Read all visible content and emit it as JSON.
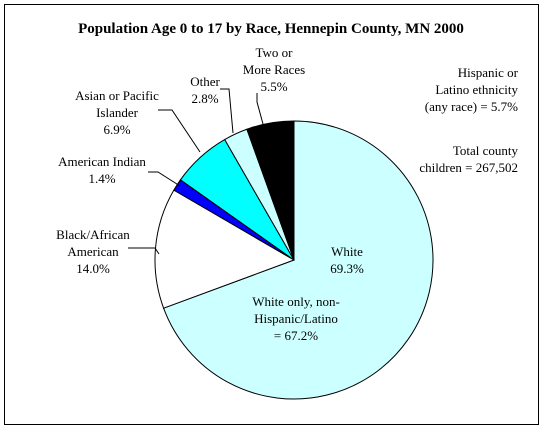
{
  "chart_data": {
    "type": "pie",
    "title": "Population Age 0 to 17 by Race, Hennepin County, MN 2000",
    "slices": [
      {
        "name": "White",
        "label_lines": [
          "White",
          "69.3%"
        ],
        "value": 69.3,
        "color": "#ccffff"
      },
      {
        "name": "Black/African American",
        "label_lines": [
          "Black/African",
          "American",
          "14.0%"
        ],
        "value": 14.0,
        "color": "#ffffff"
      },
      {
        "name": "American Indian",
        "label_lines": [
          "American Indian",
          "1.4%"
        ],
        "value": 1.4,
        "color": "#0000ff"
      },
      {
        "name": "Asian or Pacific Islander",
        "label_lines": [
          "Asian or Pacific",
          "Islander",
          "6.9%"
        ],
        "value": 6.9,
        "color": "#00ffff"
      },
      {
        "name": "Other",
        "label_lines": [
          "Other",
          "2.8%"
        ],
        "value": 2.8,
        "color": "#ccffff"
      },
      {
        "name": "Two or More Races",
        "label_lines": [
          "Two or",
          "More Races",
          "5.5%"
        ],
        "value": 5.5,
        "color": "#000000"
      }
    ],
    "annotations": [
      {
        "name": "white-only-note",
        "lines": [
          "White only, non-",
          "Hispanic/Latino",
          "= 67.2%"
        ]
      },
      {
        "name": "hispanic-note",
        "lines": [
          "Hispanic or",
          "Latino ethnicity",
          "(any race) = 5.7%"
        ]
      },
      {
        "name": "total-note",
        "lines": [
          "Total county",
          "children = 267,502"
        ]
      }
    ]
  }
}
